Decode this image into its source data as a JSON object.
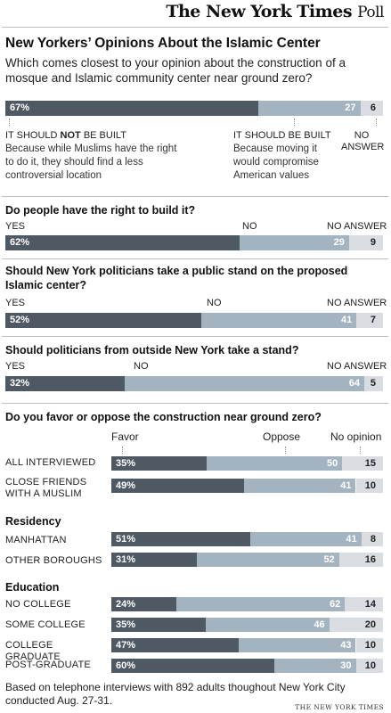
{
  "brand": {
    "name": "The New York Times",
    "suffix": "Poll"
  },
  "title": "New Yorkers’ Opinions About the Islamic Center",
  "subtitle": "Which comes closest to your opinion about the construction of a mosque and Islamic community center near ground zero?",
  "q1": {
    "labels": {
      "not_built_pre": "IT SHOULD ",
      "not_built_em": "NOT",
      "not_built_post": " BE BUILT",
      "not_built_desc": "Because while Muslims have the right to do it, they should find a less controversial location",
      "built": "IT SHOULD BE BUILT",
      "built_desc": "Because moving it would compromise American values",
      "no_answer": "NO ANSWER"
    }
  },
  "q2": {
    "question": "Do people have the right to build it?",
    "yes": "YES",
    "no": "NO",
    "no_answer": "NO ANSWER"
  },
  "q3": {
    "question": "Should New York politicians take a public stand on the proposed Islamic center?",
    "yes": "YES",
    "no": "NO",
    "no_answer": "NO ANSWER"
  },
  "q4": {
    "question": "Should politicians from outside New York take a stand?",
    "yes": "YES",
    "no": "NO",
    "no_answer": "NO ANSWER"
  },
  "q5": {
    "question": "Do you favor or oppose the construction near ground zero?",
    "favor": "Favor",
    "oppose": "Oppose",
    "no_opinion": "No opinion",
    "row_all": "ALL INTERVIEWED",
    "row_friends": "CLOSE FRIENDS WITH A MUSLIM",
    "residency": "Residency",
    "row_manhattan": "MANHATTAN",
    "row_other": "OTHER BOROUGHS",
    "education": "Education",
    "row_nocollege": "NO COLLEGE",
    "row_somecollege": "SOME COLLEGE",
    "row_grad": "COLLEGE GRADUATE",
    "row_postgrad": "POST-GRADUATE"
  },
  "footnote": "Based on telephone interviews with 892 adults thoughout New York City conducted Aug. 27-31.",
  "credit": "THE NEW YORK TIMES",
  "colors": {
    "dark": "#4e5964",
    "mid": "#a3b3c0",
    "light": "#d9dde1"
  },
  "chart_data": [
    {
      "type": "bar",
      "id": "q1",
      "stacked": true,
      "categories": [
        "It should not be built",
        "It should be built",
        "No answer"
      ],
      "values": [
        67,
        27,
        6
      ],
      "labels": [
        "67%",
        "27",
        "6"
      ]
    },
    {
      "type": "bar",
      "id": "q2",
      "stacked": true,
      "categories": [
        "YES",
        "NO",
        "NO ANSWER"
      ],
      "values": [
        62,
        29,
        9
      ],
      "labels": [
        "62%",
        "29",
        "9"
      ]
    },
    {
      "type": "bar",
      "id": "q3",
      "stacked": true,
      "categories": [
        "YES",
        "NO",
        "NO ANSWER"
      ],
      "values": [
        52,
        41,
        7
      ],
      "labels": [
        "52%",
        "41",
        "7"
      ]
    },
    {
      "type": "bar",
      "id": "q4",
      "stacked": true,
      "categories": [
        "YES",
        "NO",
        "NO ANSWER"
      ],
      "values": [
        32,
        64,
        5
      ],
      "labels": [
        "32%",
        "64",
        "5"
      ]
    },
    {
      "type": "bar",
      "id": "q5",
      "stacked": true,
      "series_names": [
        "Favor",
        "Oppose",
        "No opinion"
      ],
      "rows": [
        {
          "id": "all",
          "values": [
            35,
            50,
            15
          ],
          "labels": [
            "35%",
            "50",
            "15"
          ]
        },
        {
          "id": "friends",
          "values": [
            49,
            41,
            10
          ],
          "labels": [
            "49%",
            "41",
            "10"
          ]
        },
        {
          "id": "manhattan",
          "values": [
            51,
            41,
            8
          ],
          "labels": [
            "51%",
            "41",
            "8"
          ]
        },
        {
          "id": "other",
          "values": [
            31,
            52,
            16
          ],
          "labels": [
            "31%",
            "52",
            "16"
          ]
        },
        {
          "id": "nocollege",
          "values": [
            24,
            62,
            14
          ],
          "labels": [
            "24%",
            "62",
            "14"
          ]
        },
        {
          "id": "somecollege",
          "values": [
            35,
            46,
            20
          ],
          "labels": [
            "35%",
            "46",
            "20"
          ]
        },
        {
          "id": "grad",
          "values": [
            47,
            43,
            10
          ],
          "labels": [
            "47%",
            "43",
            "10"
          ]
        },
        {
          "id": "postgrad",
          "values": [
            60,
            30,
            10
          ],
          "labels": [
            "60%",
            "30",
            "10"
          ]
        }
      ]
    }
  ]
}
